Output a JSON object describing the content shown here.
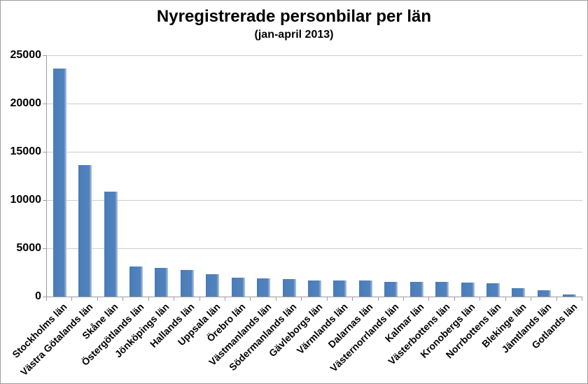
{
  "chart_data": {
    "type": "bar",
    "title": "Nyregistrerade personbilar per län",
    "subtitle": "(jan-april 2013)",
    "categories": [
      "Stockholms län",
      "Västra Götalands län",
      "Skåne län",
      "Östergötlands län",
      "Jönköpings län",
      "Hallands län",
      "Uppsala län",
      "Örebro län",
      "Västmanlands län",
      "Södermanlands län",
      "Gävleborgs län",
      "Värmlands län",
      "Dalarnas län",
      "Västernorrlands län",
      "Kalmar län",
      "Västerbottens län",
      "Kronobergs län",
      "Norrbottens län",
      "Blekinge län",
      "Jämtlands län",
      "Gotlands län"
    ],
    "values": [
      23600,
      13650,
      10900,
      3100,
      2950,
      2750,
      2350,
      1950,
      1850,
      1800,
      1700,
      1650,
      1650,
      1550,
      1550,
      1500,
      1450,
      1350,
      850,
      650,
      250
    ],
    "xlabel": "",
    "ylabel": "",
    "ylim": [
      0,
      25000
    ],
    "yticks": [
      0,
      5000,
      10000,
      15000,
      20000,
      25000
    ],
    "grid": true,
    "legend": false
  },
  "colors": {
    "bar_fill": "#4f81bd",
    "bar_highlight": "#b3c6e4",
    "gridline": "#cdcdcd",
    "axis_line": "#9c9c9c",
    "frame_border": "#9d9d9d",
    "text": "#000000",
    "background": "#ffffff"
  }
}
